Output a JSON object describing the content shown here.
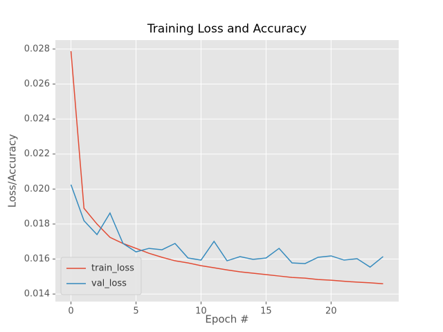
{
  "chart_data": {
    "type": "line",
    "title": "Training Loss and Accuracy",
    "x_label": "Epoch #",
    "y_label": "Loss/Accuracy",
    "x": [
      0,
      1,
      2,
      3,
      4,
      5,
      6,
      7,
      8,
      9,
      10,
      11,
      12,
      13,
      14,
      15,
      16,
      17,
      18,
      19,
      20,
      21,
      22,
      23,
      24
    ],
    "series": [
      {
        "name": "train_loss",
        "color": "#E24A33",
        "values": [
          0.02788,
          0.0189,
          0.018,
          0.01724,
          0.01689,
          0.01661,
          0.01633,
          0.0161,
          0.0159,
          0.01578,
          0.01562,
          0.0155,
          0.01538,
          0.01527,
          0.01519,
          0.01511,
          0.01503,
          0.01495,
          0.01491,
          0.01483,
          0.01479,
          0.01473,
          0.01468,
          0.01464,
          0.01459
        ]
      },
      {
        "name": "val_loss",
        "color": "#348ABD",
        "values": [
          0.02025,
          0.01819,
          0.0174,
          0.01863,
          0.01689,
          0.01641,
          0.01661,
          0.01653,
          0.01689,
          0.01606,
          0.01594,
          0.01701,
          0.0159,
          0.01614,
          0.01598,
          0.01606,
          0.01661,
          0.01578,
          0.01574,
          0.0161,
          0.01618,
          0.01594,
          0.01602,
          0.01554,
          0.01614
        ]
      }
    ],
    "xlim": [
      -1.2,
      25.2
    ],
    "xticks": [
      0,
      5,
      10,
      15,
      20
    ],
    "ylim": [
      0.01357,
      0.02851
    ],
    "yticks": [
      0.014,
      0.016,
      0.018,
      {
        "value": 0.02,
        "label": "0.020"
      },
      0.022,
      0.024,
      0.026,
      0.028
    ],
    "grid": true,
    "legend": "lower left"
  }
}
